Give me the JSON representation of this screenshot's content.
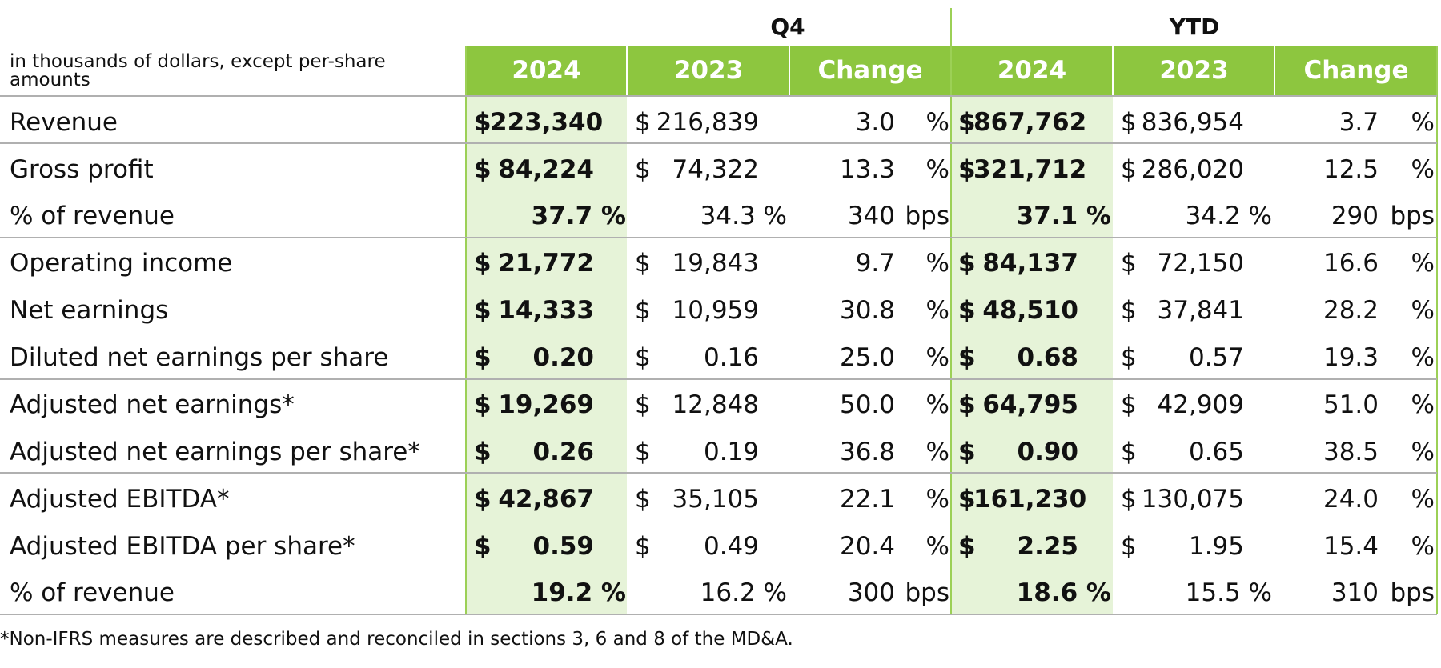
{
  "header": {
    "q4_label": "Q4",
    "ytd_label": "YTD",
    "units_note": "in thousands of dollars, except per-share amounts",
    "columns": [
      "2024",
      "2023",
      "Change",
      "2024",
      "2023",
      "Change"
    ]
  },
  "colors": {
    "header_green": "#8dc63f",
    "shade_green": "#e6f3d8",
    "divider_green": "#9cd056"
  },
  "rows": [
    {
      "label": "Revenue",
      "type": "money",
      "q4_2024": "223,340",
      "q4_2023": "216,839",
      "q4_change": "3.0",
      "q4_unit": "%",
      "ytd_2024": "867,762",
      "ytd_2023": "836,954",
      "ytd_change": "3.7",
      "ytd_unit": "%"
    },
    {
      "label": "Gross profit",
      "type": "money",
      "q4_2024": "84,224",
      "q4_2023": "74,322",
      "q4_change": "13.3",
      "q4_unit": "%",
      "ytd_2024": "321,712",
      "ytd_2023": "286,020",
      "ytd_change": "12.5",
      "ytd_unit": "%"
    },
    {
      "label": "% of revenue",
      "type": "pct",
      "q4_2024": "37.7 %",
      "q4_2023": "34.3 %",
      "q4_change": "340",
      "q4_unit": "bps",
      "ytd_2024": "37.1 %",
      "ytd_2023": "34.2 %",
      "ytd_change": "290",
      "ytd_unit": "bps"
    },
    {
      "label": "Operating income",
      "type": "money",
      "q4_2024": "21,772",
      "q4_2023": "19,843",
      "q4_change": "9.7",
      "q4_unit": "%",
      "ytd_2024": "84,137",
      "ytd_2023": "72,150",
      "ytd_change": "16.6",
      "ytd_unit": "%"
    },
    {
      "label": "Net earnings",
      "type": "money",
      "q4_2024": "14,333",
      "q4_2023": "10,959",
      "q4_change": "30.8",
      "q4_unit": "%",
      "ytd_2024": "48,510",
      "ytd_2023": "37,841",
      "ytd_change": "28.2",
      "ytd_unit": "%"
    },
    {
      "label": "Diluted net earnings per share",
      "type": "money",
      "q4_2024": "0.20",
      "q4_2023": "0.16",
      "q4_change": "25.0",
      "q4_unit": "%",
      "ytd_2024": "0.68",
      "ytd_2023": "0.57",
      "ytd_change": "19.3",
      "ytd_unit": "%"
    },
    {
      "label": "Adjusted net earnings*",
      "type": "money",
      "q4_2024": "19,269",
      "q4_2023": "12,848",
      "q4_change": "50.0",
      "q4_unit": "%",
      "ytd_2024": "64,795",
      "ytd_2023": "42,909",
      "ytd_change": "51.0",
      "ytd_unit": "%"
    },
    {
      "label": "Adjusted net earnings per share*",
      "type": "money",
      "q4_2024": "0.26",
      "q4_2023": "0.19",
      "q4_change": "36.8",
      "q4_unit": "%",
      "ytd_2024": "0.90",
      "ytd_2023": "0.65",
      "ytd_change": "38.5",
      "ytd_unit": "%"
    },
    {
      "label": "Adjusted EBITDA*",
      "type": "money",
      "q4_2024": "42,867",
      "q4_2023": "35,105",
      "q4_change": "22.1",
      "q4_unit": "%",
      "ytd_2024": "161,230",
      "ytd_2023": "130,075",
      "ytd_change": "24.0",
      "ytd_unit": "%"
    },
    {
      "label": "Adjusted EBITDA per share*",
      "type": "money",
      "q4_2024": "0.59",
      "q4_2023": "0.49",
      "q4_change": "20.4",
      "q4_unit": "%",
      "ytd_2024": "2.25",
      "ytd_2023": "1.95",
      "ytd_change": "15.4",
      "ytd_unit": "%"
    },
    {
      "label": "% of revenue",
      "type": "pct",
      "q4_2024": "19.2 %",
      "q4_2023": "16.2 %",
      "q4_change": "300",
      "q4_unit": "bps",
      "ytd_2024": "18.6 %",
      "ytd_2023": "15.5 %",
      "ytd_change": "310",
      "ytd_unit": "bps"
    }
  ],
  "currency_symbol": "$",
  "footnote": "*Non-IFRS measures are described and reconciled in sections 3, 6 and 8 of the MD&A."
}
